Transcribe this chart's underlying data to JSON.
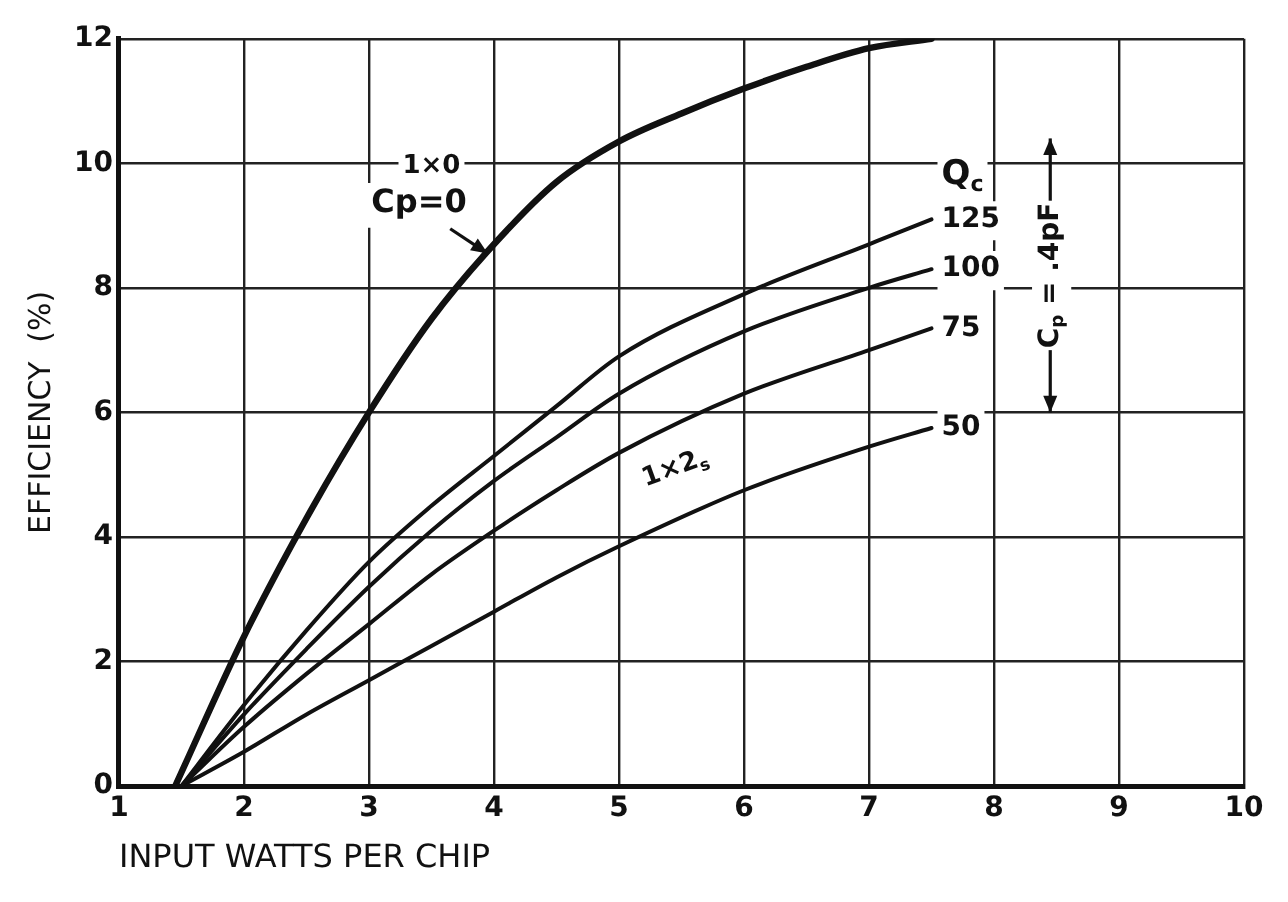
{
  "chart_data": {
    "type": "line",
    "xlabel": "INPUT WATTS PER CHIP",
    "ylabel": "EFFICIENCY  (%)",
    "legend_title": "Q$_{c}$",
    "series": [
      {
        "color": "#111111",
        "x": [
          1.45,
          2,
          2.5,
          3,
          3.5,
          4,
          4.5,
          5,
          5.5,
          6,
          6.5,
          7,
          7.5
        ],
        "values": [
          0,
          2.4,
          4.3,
          6.0,
          7.5,
          8.7,
          9.7,
          10.35,
          10.8,
          11.2,
          11.55,
          11.85,
          12.0
        ]
      },
      {
        "name": "125",
        "color": "#111111",
        "x": [
          1.5,
          2,
          2.5,
          3,
          3.5,
          4,
          4.5,
          5,
          6,
          7,
          7.5
        ],
        "values": [
          0,
          1.3,
          2.5,
          3.6,
          4.5,
          5.3,
          6.1,
          6.9,
          7.9,
          8.7,
          9.1
        ]
      },
      {
        "name": "100",
        "color": "#111111",
        "x": [
          1.5,
          2,
          2.5,
          3,
          3.5,
          4,
          4.5,
          5,
          6,
          7,
          7.5
        ],
        "values": [
          0,
          1.15,
          2.2,
          3.2,
          4.1,
          4.9,
          5.6,
          6.3,
          7.3,
          8.0,
          8.3
        ]
      },
      {
        "name": "75",
        "color": "#111111",
        "x": [
          1.5,
          2,
          2.5,
          3,
          3.5,
          4,
          4.5,
          5,
          6,
          7,
          7.5
        ],
        "values": [
          0,
          0.95,
          1.8,
          2.6,
          3.4,
          4.1,
          4.75,
          5.35,
          6.3,
          7.0,
          7.35
        ]
      },
      {
        "name": "50",
        "color": "#111111",
        "x": [
          1.5,
          2,
          2.5,
          3,
          3.5,
          4,
          4.5,
          5,
          6,
          7,
          7.5
        ],
        "values": [
          0,
          0.55,
          1.15,
          1.7,
          2.25,
          2.8,
          3.35,
          3.85,
          4.75,
          5.45,
          5.75
        ]
      }
    ],
    "xlim": [
      1,
      10
    ],
    "xticks": [
      1,
      2,
      3,
      4,
      5,
      6,
      7,
      8,
      9,
      10
    ],
    "ylim": [
      0,
      12
    ],
    "yticks": [
      0,
      2,
      4,
      6,
      8,
      10,
      12
    ],
    "grid": true,
    "legend": false,
    "marker": "none",
    "line_style": "solid",
    "annotations": [
      "1×0",
      "Cp=0",
      "C$_{p}$ = .4pF",
      "1×2$_{s}$"
    ]
  }
}
